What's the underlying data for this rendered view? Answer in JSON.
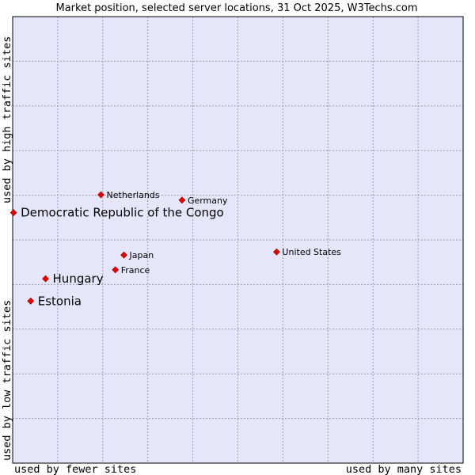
{
  "chart_data": {
    "type": "scatter",
    "title": "Market position, selected server locations, 31 Oct 2025, W3Techs.com",
    "xlabel_left": "used by fewer sites",
    "xlabel_right": "used by many sites",
    "ylabel_bottom": "used by low traffic sites",
    "ylabel_top": "used by high traffic sites",
    "xlim": [
      0,
      100
    ],
    "ylim": [
      0,
      100
    ],
    "grid": true,
    "colors": {
      "plot_background": "#e6e6fa",
      "grid": "#9a9ab0",
      "frame": "#000000",
      "marker": "#e00000",
      "marker_edge": "#990000"
    },
    "points": [
      {
        "label": "Netherlands",
        "x": 19.6,
        "y": 60.1,
        "size": "small"
      },
      {
        "label": "Germany",
        "x": 37.6,
        "y": 58.9,
        "size": "small"
      },
      {
        "label": "Democratic Republic of the Congo",
        "x": 0.2,
        "y": 56.1,
        "size": "large"
      },
      {
        "label": "United States",
        "x": 58.6,
        "y": 47.3,
        "size": "small"
      },
      {
        "label": "Japan",
        "x": 24.7,
        "y": 46.6,
        "size": "small"
      },
      {
        "label": "France",
        "x": 22.8,
        "y": 43.3,
        "size": "small"
      },
      {
        "label": "Hungary",
        "x": 7.3,
        "y": 41.3,
        "size": "large"
      },
      {
        "label": "Estonia",
        "x": 4.0,
        "y": 36.3,
        "size": "large"
      }
    ]
  }
}
